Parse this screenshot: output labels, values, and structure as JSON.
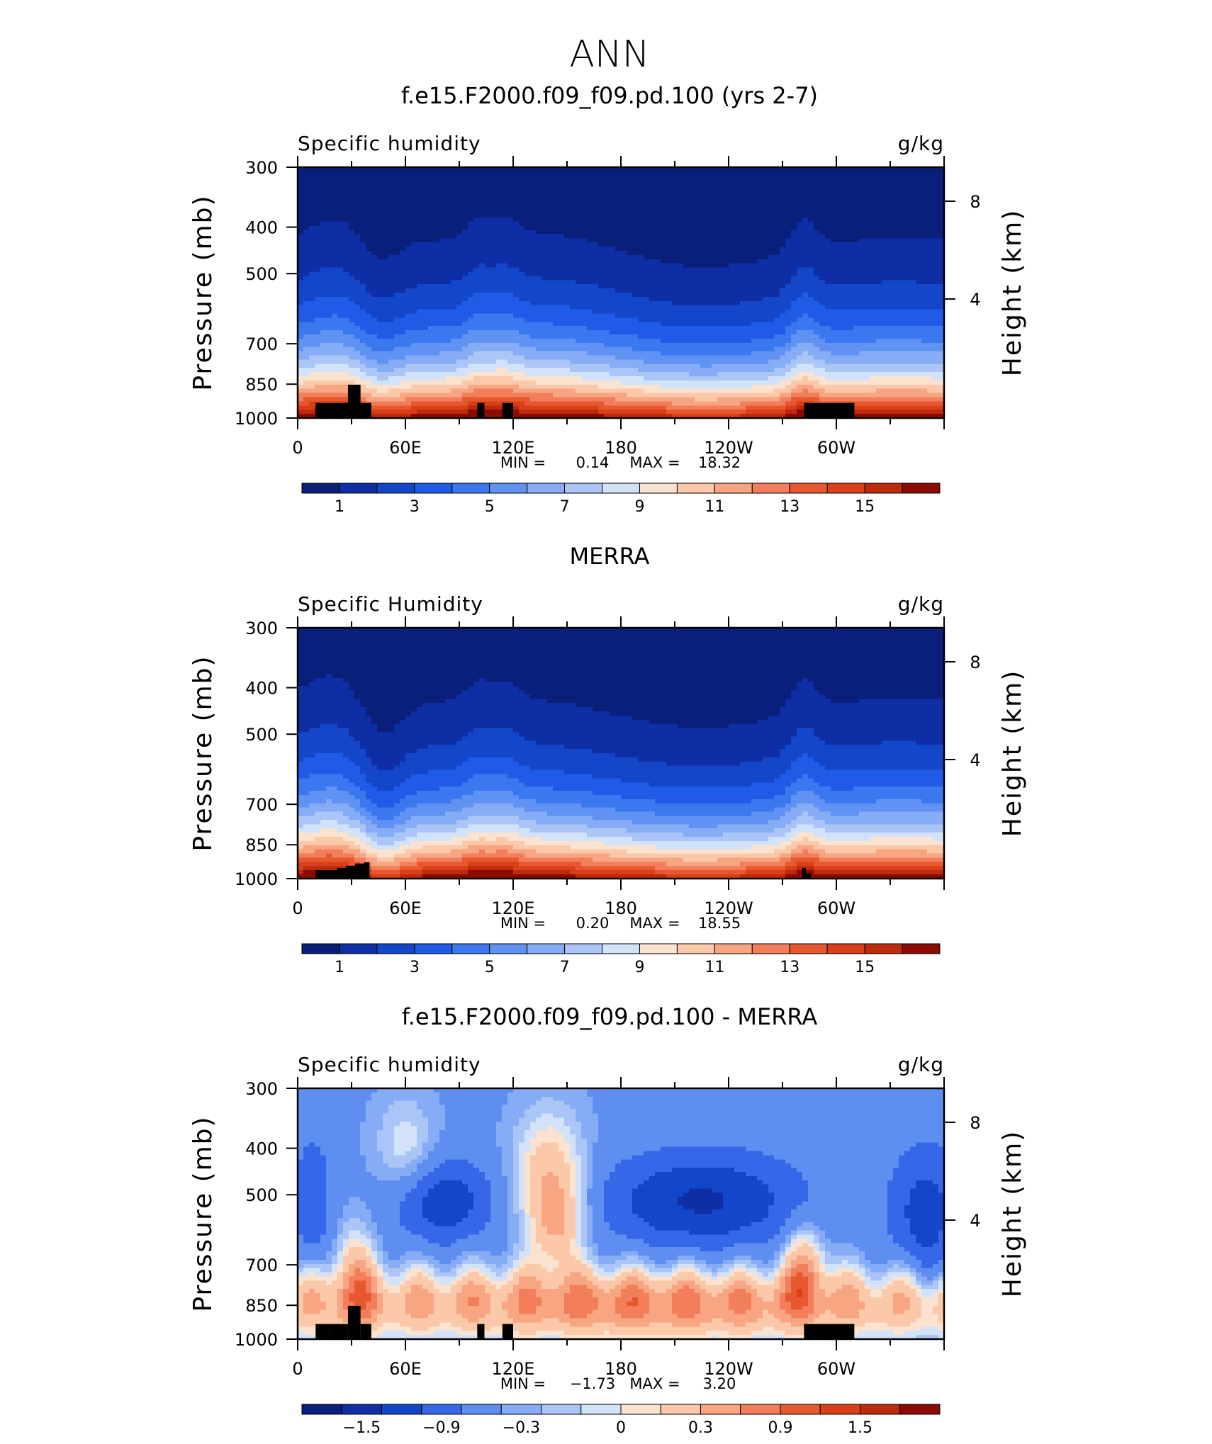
{
  "page": {
    "title": "ANN"
  },
  "colors": {
    "humidity_palette": [
      "#0a1f7a",
      "#0d2ea4",
      "#1446c9",
      "#1f5be6",
      "#3b77ee",
      "#5f92f2",
      "#85acf4",
      "#abc6f6",
      "#d2e2f8",
      "#fbe3cf",
      "#fbc8a9",
      "#f8a582",
      "#f37e5b",
      "#e8582e",
      "#d93f18",
      "#bd2a0c",
      "#8b0b00"
    ],
    "diff_palette": [
      "#0a1f7a",
      "#0d2ea4",
      "#1446c9",
      "#3567e8",
      "#5e8ef0",
      "#85acf4",
      "#abc6f6",
      "#d2e2f8",
      "#fbe3cf",
      "#fbc8a9",
      "#f8a582",
      "#f37e5b",
      "#e8582e",
      "#d93f18",
      "#bd2a0c",
      "#8b0b00"
    ],
    "topography": "#000000"
  },
  "chart_data": [
    {
      "type": "heatmap",
      "title": "f.e15.F2000.f09_f09.pd.100 (yrs 2-7)",
      "left_label": "Specific humidity",
      "right_label": "g/kg",
      "ylabel": "Pressure (mb)",
      "y2label": "Height (km)",
      "x_ticklabels": [
        "0",
        "60E",
        "120E",
        "180",
        "120W",
        "60W"
      ],
      "x_range_deg": [
        0,
        360
      ],
      "y_ticklabels": [
        "300",
        "400",
        "500",
        "700",
        "850",
        "1000"
      ],
      "y_range_mb": [
        300,
        1000
      ],
      "y2_ticklabels": [
        "8",
        "4"
      ],
      "min_label": "MIN =",
      "min_value": "0.14",
      "max_label": "MAX =",
      "max_value": "18.32",
      "colorbar_ticks": [
        "1",
        "3",
        "5",
        "7",
        "9",
        "11",
        "13",
        "15"
      ],
      "field": "humidity_model"
    },
    {
      "type": "heatmap",
      "title": "MERRA",
      "left_label": "Specific Humidity",
      "right_label": "g/kg",
      "ylabel": "Pressure (mb)",
      "y2label": "Height (km)",
      "x_ticklabels": [
        "0",
        "60E",
        "120E",
        "180",
        "120W",
        "60W"
      ],
      "x_range_deg": [
        0,
        360
      ],
      "y_ticklabels": [
        "300",
        "400",
        "500",
        "700",
        "850",
        "1000"
      ],
      "y_range_mb": [
        300,
        1000
      ],
      "y2_ticklabels": [
        "8",
        "4"
      ],
      "min_label": "MIN =",
      "min_value": "0.20",
      "max_label": "MAX =",
      "max_value": "18.55",
      "colorbar_ticks": [
        "1",
        "3",
        "5",
        "7",
        "9",
        "11",
        "13",
        "15"
      ],
      "field": "humidity_obs"
    },
    {
      "type": "heatmap",
      "title": "f.e15.F2000.f09_f09.pd.100 - MERRA",
      "left_label": "Specific humidity",
      "right_label": "g/kg",
      "ylabel": "Pressure (mb)",
      "y2label": "Height (km)",
      "x_ticklabels": [
        "0",
        "60E",
        "120E",
        "180",
        "120W",
        "60W"
      ],
      "x_range_deg": [
        0,
        360
      ],
      "y_ticklabels": [
        "300",
        "400",
        "500",
        "700",
        "850",
        "1000"
      ],
      "y_range_mb": [
        300,
        1000
      ],
      "y2_ticklabels": [
        "8",
        "4"
      ],
      "min_label": "MIN =",
      "min_value": "−1.73",
      "max_label": "MAX =",
      "max_value": "3.20",
      "colorbar_ticks": [
        "−1.5",
        "−0.9",
        "−0.3",
        "0",
        "0.3",
        "0.9",
        "1.5"
      ],
      "field": "difference"
    }
  ]
}
